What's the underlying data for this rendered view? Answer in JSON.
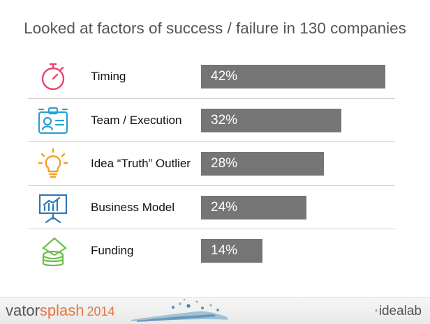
{
  "chart_data": {
    "type": "bar",
    "orientation": "horizontal",
    "title": "Looked at factors of success / failure in 130 companies",
    "categories": [
      "Timing",
      "Team / Execution",
      "Idea “Truth” Outlier",
      "Business Model",
      "Funding"
    ],
    "values": [
      42,
      32,
      28,
      24,
      14
    ],
    "value_labels": [
      "42%",
      "32%",
      "28%",
      "24%",
      "14%"
    ],
    "xlim": [
      0,
      42
    ],
    "bar_color": "#757575",
    "icon_color": "#2a9fd6",
    "icons": [
      "stopwatch-icon",
      "id-badge-icon",
      "lightbulb-icon",
      "presentation-chart-icon",
      "money-stack-icon"
    ],
    "icon_colors": [
      "#e8446d",
      "#2a9fd6",
      "#f3a21b",
      "#2f76b8",
      "#6cbf4a"
    ],
    "grid": false,
    "legend": "none"
  },
  "footer": {
    "brand_left_1": "vator",
    "brand_left_2": "splash",
    "brand_left_year": "2014",
    "brand_right_prefix": "·",
    "brand_right": "idealab"
  }
}
